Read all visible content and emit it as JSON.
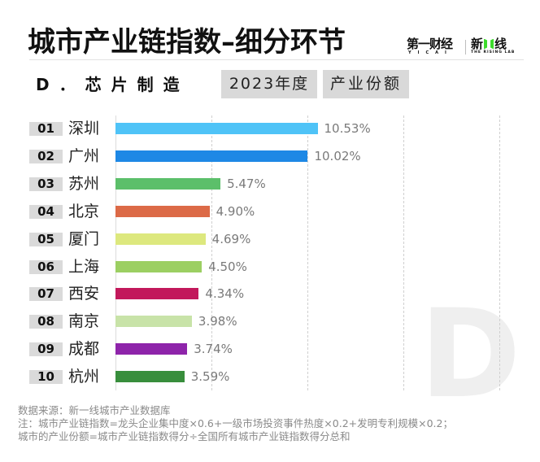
{
  "header": {
    "title": "城市产业链指数–细分环节",
    "logos": {
      "yicai_cn": "第一财经",
      "yicai_en": "YICAI",
      "rising_cn_left": "新",
      "rising_cn_right": "线",
      "rising_en": "THE RISING LAB"
    }
  },
  "subtitle": {
    "label": "D．芯片制造",
    "tags": [
      "2023年度",
      "产业份额"
    ]
  },
  "watermark_letter": "D",
  "colors": {
    "rank_bg": "#dadada",
    "tag_bg": "#d9d9d9",
    "value_text": "#7a7a7a",
    "gridline": "#cfcfcf"
  },
  "chart_data": {
    "type": "bar",
    "orientation": "horizontal",
    "title": "城市产业链指数–细分环节",
    "subtitle": "D．芯片制造 · 2023年度 · 产业份额",
    "xlabel": "",
    "ylabel": "",
    "unit": "%",
    "xlim": [
      0,
      20
    ],
    "grid": true,
    "grid_ticks": [
      0,
      5,
      10,
      15,
      20
    ],
    "legend": null,
    "categories": [
      "深圳",
      "广州",
      "苏州",
      "北京",
      "厦门",
      "上海",
      "西安",
      "南京",
      "成都",
      "杭州"
    ],
    "ranks": [
      "01",
      "02",
      "03",
      "04",
      "05",
      "06",
      "07",
      "08",
      "09",
      "10"
    ],
    "values": [
      10.53,
      10.02,
      5.47,
      4.9,
      4.69,
      4.5,
      4.34,
      3.98,
      3.74,
      3.59
    ],
    "value_labels": [
      "10.53%",
      "10.02%",
      "5.47%",
      "4.90%",
      "4.69%",
      "4.50%",
      "4.34%",
      "3.98%",
      "3.74%",
      "3.59%"
    ],
    "bar_colors": [
      "#4fc3f7",
      "#1e88e5",
      "#5cbf6a",
      "#dc6a47",
      "#dde87e",
      "#9ccf62",
      "#c2185b",
      "#c8e3a8",
      "#8e24aa",
      "#388e3c"
    ]
  },
  "rows": [
    {
      "rank": "01",
      "city": "深圳",
      "value": "10.53%"
    },
    {
      "rank": "02",
      "city": "广州",
      "value": "10.02%"
    },
    {
      "rank": "03",
      "city": "苏州",
      "value": "5.47%"
    },
    {
      "rank": "04",
      "city": "北京",
      "value": "4.90%"
    },
    {
      "rank": "05",
      "city": "厦门",
      "value": "4.69%"
    },
    {
      "rank": "06",
      "city": "上海",
      "value": "4.50%"
    },
    {
      "rank": "07",
      "city": "西安",
      "value": "4.34%"
    },
    {
      "rank": "08",
      "city": "南京",
      "value": "3.98%"
    },
    {
      "rank": "09",
      "city": "成都",
      "value": "3.74%"
    },
    {
      "rank": "10",
      "city": "杭州",
      "value": "3.59%"
    }
  ],
  "footer": {
    "source": "数据来源：新一线城市产业数据库",
    "note1": "注：城市产业链指数=龙头企业集中度×0.6+一级市场投资事件热度×0.2+发明专利规模×0.2；",
    "note2": "城市的产业份额=城市产业链指数得分÷全国所有城市产业链指数得分总和"
  }
}
